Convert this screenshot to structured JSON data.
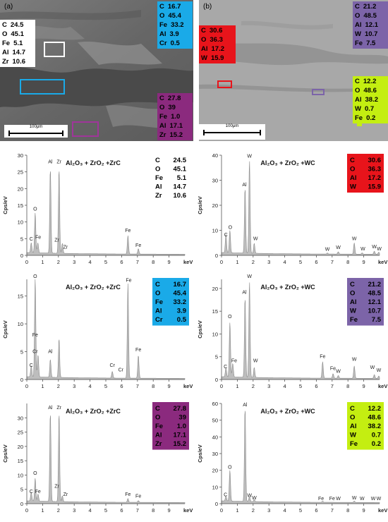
{
  "sem_panels": [
    {
      "letter": "(a)",
      "scale_label": "100μm",
      "boxes": [
        {
          "color": "#ffffff",
          "text_color": "#000000",
          "lines": [
            [
              "C",
              "24.5"
            ],
            [
              "O",
              "45.1"
            ],
            [
              "Fe",
              "5.1"
            ],
            [
              "Al",
              "14.7"
            ],
            [
              "Zr",
              "10.6"
            ]
          ]
        },
        {
          "color": "#1aaae8",
          "text_color": "#000000",
          "lines": [
            [
              "C",
              "16.7"
            ],
            [
              "O",
              "45.4"
            ],
            [
              "Fe",
              "33.2"
            ],
            [
              "Al",
              "3.9"
            ],
            [
              "Cr",
              "0.5"
            ]
          ]
        },
        {
          "color": "#8b2a7e",
          "text_color": "#000000",
          "lines": [
            [
              "C",
              "27.8"
            ],
            [
              "O",
              "39"
            ],
            [
              "Fe",
              "1.0"
            ],
            [
              "Al",
              "17.1"
            ],
            [
              "Zr",
              "15.2"
            ]
          ]
        }
      ],
      "markers": [
        "#ffffff",
        "#1aaae8",
        "#a0359a"
      ]
    },
    {
      "letter": "(b)",
      "scale_label": "100μm",
      "boxes": [
        {
          "color": "#e8141b",
          "text_color": "#000000",
          "lines": [
            [
              "C",
              "30.6"
            ],
            [
              "O",
              "36.3"
            ],
            [
              "Al",
              "17.2"
            ],
            [
              "W",
              "15.9"
            ]
          ]
        },
        {
          "color": "#7c64a8",
          "text_color": "#000000",
          "lines": [
            [
              "C",
              "21.2"
            ],
            [
              "O",
              "48.5"
            ],
            [
              "Al",
              "12.1"
            ],
            [
              "W",
              "10.7"
            ],
            [
              "Fe",
              "7.5"
            ]
          ]
        },
        {
          "color": "#c4ee11",
          "text_color": "#000000",
          "lines": [
            [
              "C",
              "12.2"
            ],
            [
              "O",
              "48.6"
            ],
            [
              "Al",
              "38.2"
            ],
            [
              "W",
              "0.7"
            ],
            [
              "Fe",
              "0.2"
            ]
          ]
        }
      ],
      "markers": [
        "#e8141b",
        "#7c64a8",
        "#c4ee11"
      ]
    }
  ],
  "chart_data": [
    {
      "type": "area",
      "title": "Al₂O₃ + ZrO₂ +ZrC",
      "xlabel": "keV",
      "ylabel": "Cps/eV",
      "xlim": [
        0,
        10
      ],
      "ylim": [
        0,
        30
      ],
      "xticks": [
        0,
        1,
        2,
        3,
        4,
        5,
        6,
        7,
        8,
        9
      ],
      "yticks": [
        0,
        5,
        10,
        15,
        20,
        25,
        30
      ],
      "composition": {
        "color": "#ffffff",
        "lines": [
          [
            "C",
            "24.5"
          ],
          [
            "O",
            "45.1"
          ],
          [
            "Fe",
            "5.1"
          ],
          [
            "Al",
            "14.7"
          ],
          [
            "Zr",
            "10.6"
          ]
        ]
      },
      "peaks": [
        [
          0.28,
          3.0
        ],
        [
          0.53,
          12.0
        ],
        [
          0.7,
          3.0
        ],
        [
          1.49,
          25.3
        ],
        [
          2.04,
          25.3
        ],
        [
          2.25,
          3.0
        ],
        [
          6.4,
          5.5
        ],
        [
          7.06,
          1.6
        ]
      ],
      "peak_labels": [
        {
          "label": "O",
          "x": 0.53,
          "y": 13.0
        },
        {
          "label": "C",
          "x": 0.28,
          "y": 4.0
        },
        {
          "label": "Fe",
          "x": 0.72,
          "y": 4.5
        },
        {
          "label": "Al",
          "x": 1.49,
          "y": 27.2
        },
        {
          "label": "Zr",
          "x": 2.04,
          "y": 27.2
        },
        {
          "label": "Zr",
          "x": 1.9,
          "y": 3.7
        },
        {
          "label": "Zr",
          "x": 2.45,
          "y": 1.6
        },
        {
          "label": "Fe",
          "x": 6.4,
          "y": 6.5
        },
        {
          "label": "Fe",
          "x": 7.06,
          "y": 2.1
        }
      ]
    },
    {
      "type": "area",
      "title": "Al₂O₃ + ZrO₂ +WC",
      "xlabel": "keV",
      "ylabel": "Cps/eV",
      "xlim": [
        0,
        10
      ],
      "ylim": [
        0,
        40
      ],
      "xticks": [
        0,
        1,
        2,
        3,
        4,
        5,
        6,
        7,
        8,
        9
      ],
      "yticks": [
        0,
        10,
        20,
        30,
        40
      ],
      "composition": {
        "color": "#e8141b",
        "lines": [
          [
            "C",
            "30.6"
          ],
          [
            "O",
            "36.3"
          ],
          [
            "Al",
            "17.2"
          ],
          [
            "W",
            "15.9"
          ]
        ]
      },
      "peaks": [
        [
          0.28,
          7.5
        ],
        [
          0.53,
          9.0
        ],
        [
          1.49,
          26.0
        ],
        [
          1.77,
          37.0
        ],
        [
          2.07,
          4.0
        ],
        [
          6.7,
          0.4
        ],
        [
          7.39,
          0.9
        ],
        [
          8.4,
          4.5
        ],
        [
          8.9,
          0.5
        ],
        [
          9.67,
          1.2
        ],
        [
          9.95,
          0.8
        ]
      ],
      "peak_labels": [
        {
          "label": "C",
          "x": 0.28,
          "y": 7.0
        },
        {
          "label": "O",
          "x": 0.55,
          "y": 10.0
        },
        {
          "label": "Al",
          "x": 1.45,
          "y": 27.0
        },
        {
          "label": "W",
          "x": 1.77,
          "y": 38.5
        },
        {
          "label": "W",
          "x": 2.15,
          "y": 5.5
        },
        {
          "label": "W",
          "x": 6.7,
          "y": 1.2
        },
        {
          "label": "W",
          "x": 7.39,
          "y": 2.0
        },
        {
          "label": "W",
          "x": 8.4,
          "y": 5.5
        },
        {
          "label": "W",
          "x": 8.95,
          "y": 1.4
        },
        {
          "label": "W",
          "x": 9.67,
          "y": 2.2
        },
        {
          "label": "W",
          "x": 9.98,
          "y": 1.4
        }
      ]
    },
    {
      "type": "area",
      "title": "Al₂O₃ + ZrO₂ +ZrC",
      "xlabel": "keV",
      "ylabel": "Cps/eV",
      "xlim": [
        0,
        10
      ],
      "ylim": [
        0,
        18
      ],
      "xticks": [
        0,
        1,
        2,
        3,
        4,
        5,
        6,
        7,
        8,
        9
      ],
      "yticks": [
        0,
        5,
        10,
        15
      ],
      "composition": {
        "color": "#1aaae8",
        "lines": [
          [
            "C",
            "16.7"
          ],
          [
            "O",
            "45.4"
          ],
          [
            "Fe",
            "33.2"
          ],
          [
            "Al",
            "3.9"
          ],
          [
            "Cr",
            "0.5"
          ]
        ]
      },
      "peaks": [
        [
          0.28,
          2.0
        ],
        [
          0.53,
          17.8
        ],
        [
          0.71,
          4.0
        ],
        [
          1.49,
          3.2
        ],
        [
          2.04,
          7.0
        ],
        [
          5.41,
          1.2
        ],
        [
          6.4,
          17.0
        ],
        [
          7.06,
          4.1
        ]
      ],
      "peak_labels": [
        {
          "label": "O",
          "x": 0.53,
          "y": 18.0
        },
        {
          "label": "Fe",
          "x": 0.53,
          "y": 7.5
        },
        {
          "label": "Cr",
          "x": 0.53,
          "y": 4.5
        },
        {
          "label": "C",
          "x": 0.28,
          "y": 2.0
        },
        {
          "label": "Al",
          "x": 1.49,
          "y": 4.5
        },
        {
          "label": "Cr",
          "x": 5.41,
          "y": 2.0
        },
        {
          "label": "Cr",
          "x": 5.95,
          "y": 1.2
        },
        {
          "label": "Fe",
          "x": 6.45,
          "y": 17.3
        },
        {
          "label": "Fe",
          "x": 7.06,
          "y": 4.8
        }
      ]
    },
    {
      "type": "area",
      "title": "Al₂O₃ + ZrO₂ +WC",
      "xlabel": "keV",
      "ylabel": "Cps/eV",
      "xlim": [
        0,
        10
      ],
      "ylim": [
        0,
        22
      ],
      "xticks": [
        0,
        1,
        2,
        3,
        4,
        5,
        6,
        7,
        8,
        9
      ],
      "yticks": [
        0,
        5,
        10,
        15,
        20
      ],
      "composition": {
        "color": "#7c64a8",
        "lines": [
          [
            "C",
            "21.2"
          ],
          [
            "O",
            "48.5"
          ],
          [
            "Al",
            "12.1"
          ],
          [
            "W",
            "10.7"
          ],
          [
            "Fe",
            "7.5"
          ]
        ]
      },
      "peaks": [
        [
          0.28,
          2.0
        ],
        [
          0.53,
          12.0
        ],
        [
          0.71,
          3.0
        ],
        [
          1.49,
          17.5
        ],
        [
          1.77,
          21.0
        ],
        [
          2.07,
          2.2
        ],
        [
          6.4,
          3.6
        ],
        [
          7.06,
          1.0
        ],
        [
          7.39,
          0.6
        ],
        [
          8.4,
          2.7
        ],
        [
          9.67,
          0.8
        ],
        [
          9.95,
          0.5
        ]
      ],
      "peak_labels": [
        {
          "label": "C",
          "x": 0.25,
          "y": 2.2
        },
        {
          "label": "O",
          "x": 0.53,
          "y": 13.2
        },
        {
          "label": "Fe",
          "x": 0.8,
          "y": 3.5
        },
        {
          "label": "Al",
          "x": 1.45,
          "y": 18.5
        },
        {
          "label": "W",
          "x": 1.77,
          "y": 22.0
        },
        {
          "label": "W",
          "x": 2.15,
          "y": 3.5
        },
        {
          "label": "Fe",
          "x": 6.4,
          "y": 4.4
        },
        {
          "label": "Fe",
          "x": 7.05,
          "y": 1.8
        },
        {
          "label": "W",
          "x": 7.39,
          "y": 1.2
        },
        {
          "label": "W",
          "x": 8.4,
          "y": 3.8
        },
        {
          "label": "W",
          "x": 9.55,
          "y": 2.0
        },
        {
          "label": "W",
          "x": 9.95,
          "y": 1.4
        }
      ]
    },
    {
      "type": "area",
      "title": "Al₂O₃ + ZrO₂ +ZrC",
      "xlabel": "keV",
      "ylabel": "Cps/eV",
      "xlim": [
        0,
        10
      ],
      "ylim": [
        0,
        35
      ],
      "xticks": [
        0,
        1,
        2,
        3,
        4,
        5,
        6,
        7,
        8,
        9
      ],
      "yticks": [
        0,
        5,
        10,
        15,
        20,
        25,
        30
      ],
      "composition": {
        "color": "#8b2a7e",
        "lines": [
          [
            "C",
            "27.8"
          ],
          [
            "O",
            "39"
          ],
          [
            "Fe",
            "1.0"
          ],
          [
            "Al",
            "17.1"
          ],
          [
            "Zr",
            "15.2"
          ]
        ]
      },
      "peaks": [
        [
          0.28,
          3.0
        ],
        [
          0.53,
          8.0
        ],
        [
          0.71,
          2.5
        ],
        [
          1.49,
          31.0
        ],
        [
          2.04,
          31.0
        ],
        [
          2.25,
          2.0
        ],
        [
          6.4,
          1.3
        ],
        [
          7.06,
          0.6
        ]
      ],
      "peak_labels": [
        {
          "label": "O",
          "x": 0.53,
          "y": 9.6
        },
        {
          "label": "C",
          "x": 0.28,
          "y": 3.2
        },
        {
          "label": "Fe",
          "x": 0.7,
          "y": 3.2
        },
        {
          "label": "Al",
          "x": 1.49,
          "y": 32.5
        },
        {
          "label": "Zr",
          "x": 2.04,
          "y": 32.5
        },
        {
          "label": "Zr",
          "x": 1.9,
          "y": 5.0
        },
        {
          "label": "Zr",
          "x": 2.45,
          "y": 2.2
        },
        {
          "label": "Fe",
          "x": 6.4,
          "y": 2.2
        },
        {
          "label": "Fe",
          "x": 7.06,
          "y": 1.6
        }
      ]
    },
    {
      "type": "area",
      "title": "Al₂O₃ + ZrO₂ +WC",
      "xlabel": "keV",
      "ylabel": "Cps/eV",
      "xlim": [
        0,
        10
      ],
      "ylim": [
        0,
        60
      ],
      "xticks": [
        0,
        1,
        2,
        3,
        4,
        5,
        6,
        7,
        8,
        9
      ],
      "yticks": [
        0,
        10,
        20,
        30,
        40,
        50,
        60
      ],
      "composition": {
        "color": "#c4ee11",
        "lines": [
          [
            "C",
            "12.2"
          ],
          [
            "O",
            "48.6"
          ],
          [
            "Al",
            "38.2"
          ],
          [
            "W",
            "0.7"
          ],
          [
            "Fe",
            "0.2"
          ]
        ]
      },
      "peaks": [
        [
          0.28,
          3.0
        ],
        [
          0.53,
          18.5
        ],
        [
          1.49,
          56.0
        ],
        [
          1.77,
          3.0
        ],
        [
          2.07,
          1.2
        ],
        [
          6.4,
          0.6
        ],
        [
          8.4,
          0.8
        ]
      ],
      "peak_labels": [
        {
          "label": "C",
          "x": 0.25,
          "y": 3.5
        },
        {
          "label": "O",
          "x": 0.53,
          "y": 20.0
        },
        {
          "label": "Al",
          "x": 1.49,
          "y": 57.5
        },
        {
          "label": "W",
          "x": 1.77,
          "y": 3.2
        },
        {
          "label": "W",
          "x": 2.07,
          "y": 1.6
        },
        {
          "label": "Fe",
          "x": 6.3,
          "y": 1.2
        },
        {
          "label": "Fe",
          "x": 7.0,
          "y": 1.2
        },
        {
          "label": "W",
          "x": 7.39,
          "y": 1.2
        },
        {
          "label": "W",
          "x": 8.4,
          "y": 1.6
        },
        {
          "label": "W",
          "x": 8.9,
          "y": 1.2
        },
        {
          "label": "W",
          "x": 9.6,
          "y": 1.2
        },
        {
          "label": "W",
          "x": 9.95,
          "y": 1.2
        }
      ]
    }
  ]
}
